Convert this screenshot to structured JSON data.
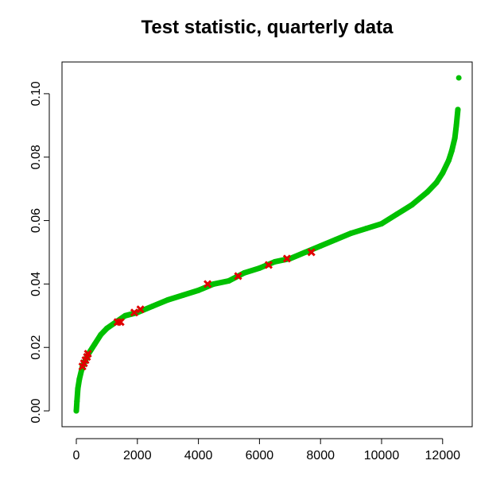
{
  "chart_data": {
    "type": "scatter",
    "title": "Test statistic, quarterly data",
    "xlim": [
      -469,
      12969
    ],
    "ylim": [
      -0.005,
      0.11
    ],
    "xticks": [
      0,
      2000,
      4000,
      6000,
      8000,
      10000,
      12000
    ],
    "yticks": [
      {
        "value": 0,
        "label": "0.00"
      },
      {
        "value": 0.02,
        "label": "0.02"
      },
      {
        "value": 0.04,
        "label": "0.04"
      },
      {
        "value": 0.06,
        "label": "0.06"
      },
      {
        "value": 0.08,
        "label": "0.08"
      },
      {
        "value": 0.1,
        "label": "0.10"
      }
    ],
    "series": [
      {
        "style": "line",
        "color": "#00c000",
        "x": [
          0,
          20,
          50,
          100,
          200,
          300,
          400,
          600,
          800,
          1000,
          1300,
          1600,
          2000,
          2500,
          3000,
          3500,
          4000,
          4500,
          5000,
          5500,
          6000,
          6500,
          7000,
          7500,
          8000,
          8500,
          9000,
          9500,
          10000,
          10500,
          11000,
          11500,
          11800,
          12000,
          12200,
          12300,
          12400,
          12450,
          12500,
          null,
          12530
        ],
        "values": [
          0.0,
          0.003,
          0.007,
          0.01,
          0.014,
          0.016,
          0.018,
          0.021,
          0.024,
          0.026,
          0.028,
          0.03,
          0.031,
          0.033,
          0.035,
          0.0365,
          0.038,
          0.04,
          0.041,
          0.0435,
          0.045,
          0.047,
          0.048,
          0.05,
          0.052,
          0.054,
          0.056,
          0.0575,
          0.059,
          0.062,
          0.065,
          0.069,
          0.072,
          0.075,
          0.079,
          0.082,
          0.086,
          0.09,
          0.095,
          null,
          0.105
        ]
      },
      {
        "style": "cross",
        "color": "#e00000",
        "x": [
          200,
          250,
          300,
          350,
          380,
          1350,
          1450,
          1900,
          2100,
          4300,
          5300,
          6300,
          6900,
          7700
        ],
        "values": [
          0.014,
          0.015,
          0.016,
          0.017,
          0.018,
          0.028,
          0.028,
          0.031,
          0.032,
          0.04,
          0.0425,
          0.046,
          0.048,
          0.05
        ]
      }
    ]
  }
}
